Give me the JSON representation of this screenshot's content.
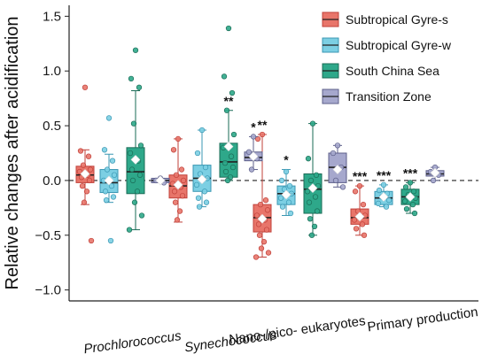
{
  "chart_data": {
    "type": "box",
    "ylabel": "Relative changes after acidification",
    "ylim": [
      -1.1,
      1.6
    ],
    "yticks": [
      "−1.0",
      "−0.5",
      "0.0",
      "0.5",
      "1.0",
      "1.5"
    ],
    "reference_line": 0.0,
    "categories": [
      "Prochlorococcus",
      "Synechococcus",
      "Nano-/pico- eukaryotes",
      "Primary production"
    ],
    "category_italic": [
      true,
      true,
      false,
      false
    ],
    "legend_position": "top-right",
    "series": [
      {
        "name": "Subtropical Gyre-s",
        "color": "#e8756a",
        "stroke": "#c0413a",
        "boxes": [
          {
            "q1": -0.02,
            "median": 0.05,
            "q3": 0.13,
            "whislo": -0.22,
            "whishi": 0.28,
            "mean": 0.06,
            "sig": "",
            "points": [
              0.85,
              0.27,
              0.22,
              0.14,
              0.1,
              0.08,
              0.05,
              0.03,
              0.0,
              -0.05,
              -0.1,
              -0.2,
              -0.55
            ]
          },
          {
            "q1": -0.16,
            "median": -0.05,
            "q3": 0.05,
            "whislo": -0.38,
            "whishi": 0.38,
            "mean": -0.04,
            "sig": "",
            "points": [
              0.38,
              0.28,
              0.1,
              0.05,
              0.0,
              -0.03,
              -0.06,
              -0.1,
              -0.14,
              -0.2,
              -0.28,
              -0.36
            ]
          },
          {
            "q1": -0.47,
            "median": -0.34,
            "q3": -0.22,
            "whislo": -0.7,
            "whishi": 0.42,
            "mean": -0.35,
            "sig": "**",
            "points": [
              0.42,
              0.38,
              -0.18,
              -0.22,
              -0.27,
              -0.32,
              -0.36,
              -0.4,
              -0.45,
              -0.5,
              -0.56,
              -0.62,
              -0.66,
              -0.7
            ]
          },
          {
            "q1": -0.4,
            "median": -0.34,
            "q3": -0.26,
            "whislo": -0.5,
            "whishi": -0.05,
            "mean": -0.33,
            "sig": "***",
            "points": [
              -0.05,
              -0.1,
              -0.22,
              -0.28,
              -0.32,
              -0.36,
              -0.4,
              -0.44,
              -0.5
            ]
          }
        ]
      },
      {
        "name": "Subtropical Gyre-w",
        "color": "#7ccfe3",
        "stroke": "#3a97b3",
        "boxes": [
          {
            "q1": -0.11,
            "median": -0.02,
            "q3": 0.1,
            "whislo": -0.2,
            "whishi": 0.24,
            "mean": 0.0,
            "sig": "",
            "points": [
              0.57,
              0.28,
              0.18,
              0.1,
              0.05,
              0.0,
              -0.05,
              -0.1,
              -0.15,
              -0.18,
              -0.55
            ]
          },
          {
            "q1": -0.1,
            "median": 0.02,
            "q3": 0.14,
            "whislo": -0.24,
            "whishi": 0.46,
            "mean": 0.01,
            "sig": "",
            "points": [
              0.46,
              0.25,
              0.12,
              0.06,
              0.02,
              -0.04,
              -0.1,
              -0.16,
              -0.2,
              -0.24
            ]
          },
          {
            "q1": -0.22,
            "median": -0.12,
            "q3": -0.05,
            "whislo": -0.32,
            "whishi": 0.1,
            "mean": -0.13,
            "sig": "*",
            "points": [
              0.08,
              0.0,
              -0.05,
              -0.08,
              -0.12,
              -0.16,
              -0.2,
              -0.24,
              -0.3
            ]
          },
          {
            "q1": -0.22,
            "median": -0.16,
            "q3": -0.1,
            "whislo": -0.24,
            "whishi": -0.04,
            "mean": -0.15,
            "sig": "***",
            "points": [
              -0.04,
              -0.09,
              -0.12,
              -0.15,
              -0.18,
              -0.21,
              -0.24
            ]
          }
        ]
      },
      {
        "name": "South China Sea",
        "color": "#2ea88a",
        "stroke": "#1a6b56",
        "boxes": [
          {
            "q1": -0.12,
            "median": 0.08,
            "q3": 0.3,
            "whislo": -0.45,
            "whishi": 0.82,
            "mean": 0.19,
            "sig": "",
            "points": [
              1.19,
              0.93,
              0.85,
              0.52,
              0.32,
              0.25,
              0.18,
              0.1,
              0.05,
              0.0,
              -0.1,
              -0.2,
              -0.32,
              -0.45
            ]
          },
          {
            "q1": 0.03,
            "median": 0.17,
            "q3": 0.34,
            "whislo": 0.0,
            "whishi": 0.64,
            "mean": 0.31,
            "sig": "**",
            "points": [
              1.39,
              0.95,
              0.8,
              0.64,
              0.42,
              0.3,
              0.22,
              0.16,
              0.12,
              0.08,
              0.03,
              0.0
            ]
          },
          {
            "q1": -0.3,
            "median": -0.08,
            "q3": 0.06,
            "whislo": -0.5,
            "whishi": 0.52,
            "mean": -0.07,
            "sig": "",
            "points": [
              0.52,
              0.2,
              0.05,
              0.0,
              -0.05,
              -0.1,
              -0.15,
              -0.2,
              -0.28,
              -0.35,
              -0.42,
              -0.5
            ]
          },
          {
            "q1": -0.22,
            "median": -0.15,
            "q3": -0.08,
            "whislo": -0.3,
            "whishi": -0.02,
            "mean": -0.15,
            "sig": "***",
            "points": [
              -0.02,
              -0.06,
              -0.1,
              -0.13,
              -0.16,
              -0.19,
              -0.22,
              -0.26,
              -0.3
            ]
          }
        ]
      },
      {
        "name": "Transition Zone",
        "color": "#a6a8cd",
        "stroke": "#5d5f8a",
        "boxes": [
          {
            "q1": -0.02,
            "median": 0.0,
            "q3": 0.02,
            "whislo": -0.02,
            "whishi": 0.02,
            "mean": 0.0,
            "sig": "",
            "points": [
              0.02,
              0.0,
              -0.02
            ]
          },
          {
            "q1": 0.18,
            "median": 0.21,
            "q3": 0.26,
            "whislo": 0.1,
            "whishi": 0.4,
            "mean": 0.22,
            "sig": "*",
            "points": [
              0.4,
              0.26,
              0.2,
              0.1
            ]
          },
          {
            "q1": -0.02,
            "median": 0.12,
            "q3": 0.25,
            "whislo": -0.06,
            "whishi": 0.32,
            "mean": 0.1,
            "sig": "",
            "points": [
              0.32,
              0.25,
              0.12,
              0.0,
              -0.06
            ]
          },
          {
            "q1": 0.04,
            "median": 0.06,
            "q3": 0.09,
            "whislo": 0.0,
            "whishi": 0.12,
            "mean": 0.07,
            "sig": "",
            "points": [
              0.12,
              0.08,
              0.05,
              0.0
            ]
          }
        ]
      }
    ]
  }
}
